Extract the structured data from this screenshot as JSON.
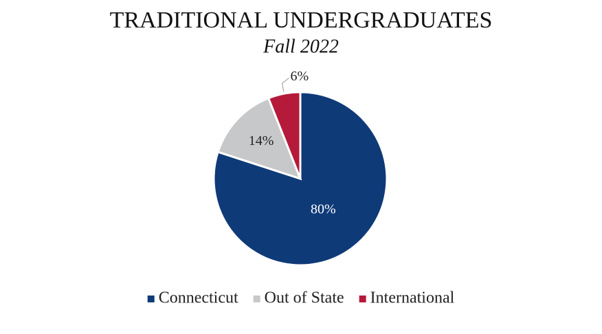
{
  "chart_data": {
    "type": "pie",
    "title": "TRADITIONAL UNDERGRADUATES",
    "subtitle": "Fall 2022",
    "categories": [
      "Connecticut",
      "Out of State",
      "International"
    ],
    "values": [
      80,
      14,
      6
    ],
    "value_labels": [
      "80%",
      "14%",
      "6%"
    ],
    "colors": [
      "#0f3a78",
      "#c6c8c9",
      "#b51a3a"
    ],
    "legend": "bottom"
  }
}
